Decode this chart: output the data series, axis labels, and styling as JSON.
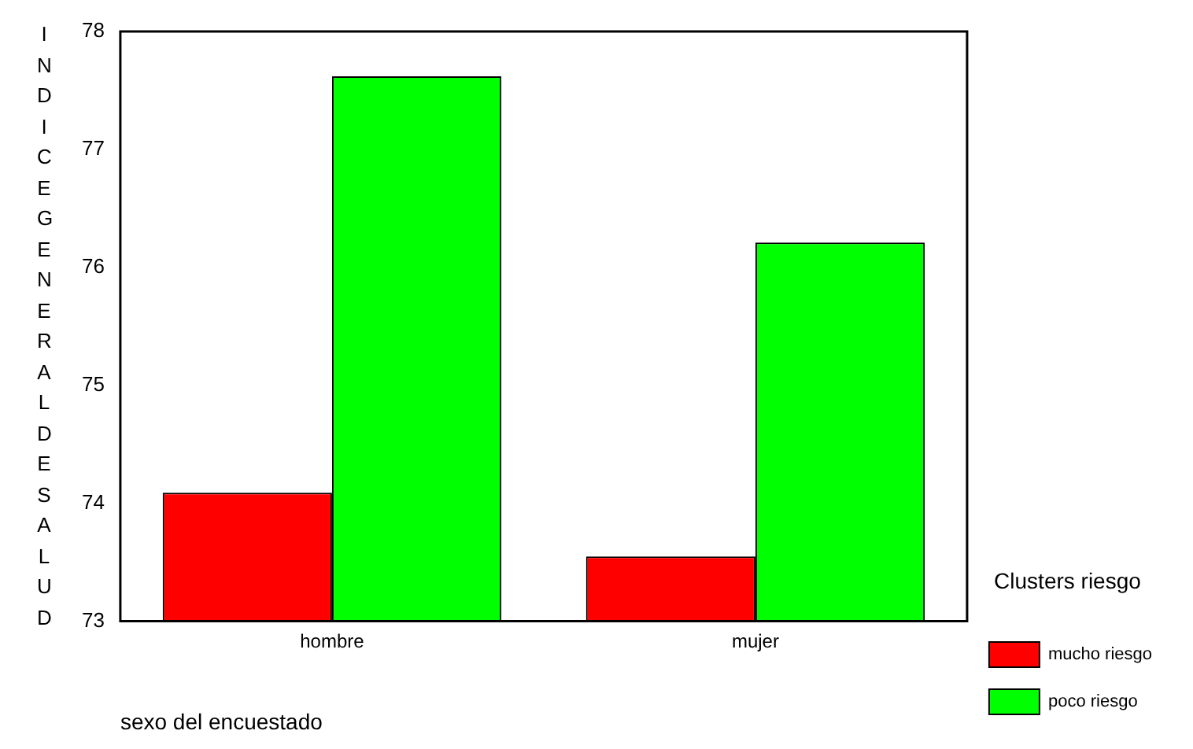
{
  "chart_data": {
    "type": "bar",
    "xlabel": "sexo del encuestado",
    "ylabel": "INDICEGENERALDESALUD",
    "legend_title": "Clusters riesgo",
    "categories": [
      "hombre",
      "mujer"
    ],
    "series": [
      {
        "name": "mucho riesgo",
        "color": "#ff0000",
        "values": [
          74.09,
          73.55
        ]
      },
      {
        "name": "poco riesgo",
        "color": "#00ff00",
        "values": [
          77.62,
          76.21
        ]
      }
    ],
    "ylim": [
      73,
      78
    ],
    "yticks": [
      73,
      74,
      75,
      76,
      77,
      78
    ],
    "grid": false,
    "legend": "right"
  }
}
